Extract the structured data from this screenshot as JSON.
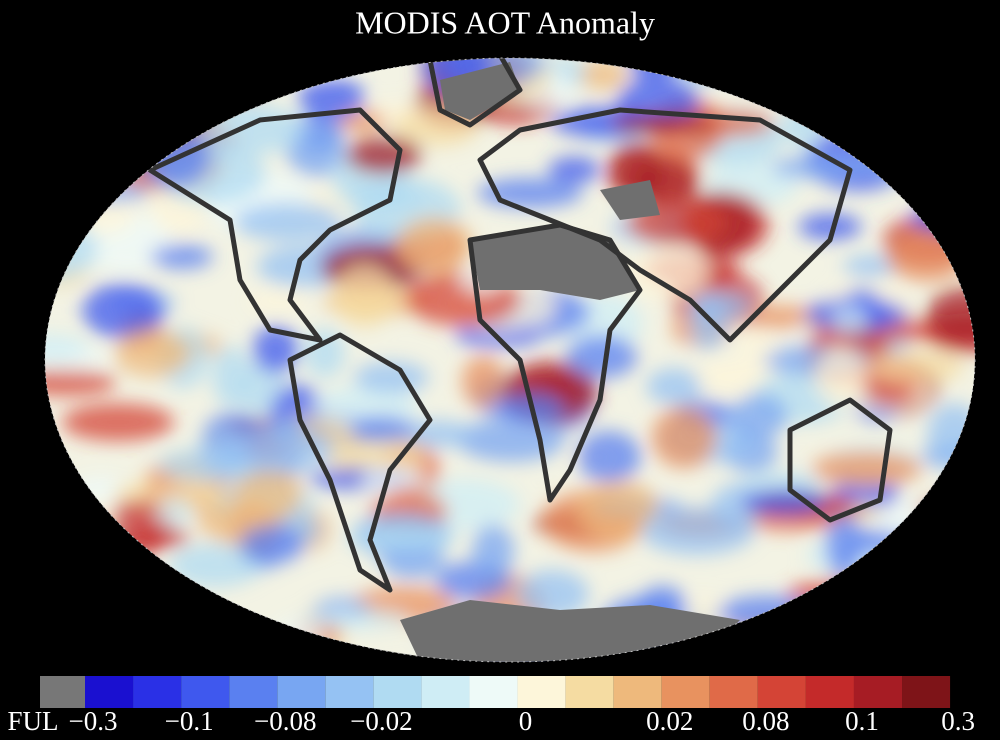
{
  "title": "MODIS AOT Anomaly",
  "legend": {
    "colors": [
      "#777777",
      "#1a10d0",
      "#2a30e6",
      "#3f58ee",
      "#5a80f0",
      "#78a6f2",
      "#95c2f3",
      "#b0dbf2",
      "#cfedf5",
      "#eefaf8",
      "#fdf6da",
      "#f5dca2",
      "#eeb97c",
      "#e8925f",
      "#e06a48",
      "#d44436",
      "#c42a2a",
      "#a61c24",
      "#7e1418"
    ],
    "labels": [
      "FUL",
      "−0.3",
      "−0.1",
      "−0.08",
      "−0.02",
      "0",
      "0.02",
      "0.08",
      "0.1",
      "0.3"
    ]
  }
}
